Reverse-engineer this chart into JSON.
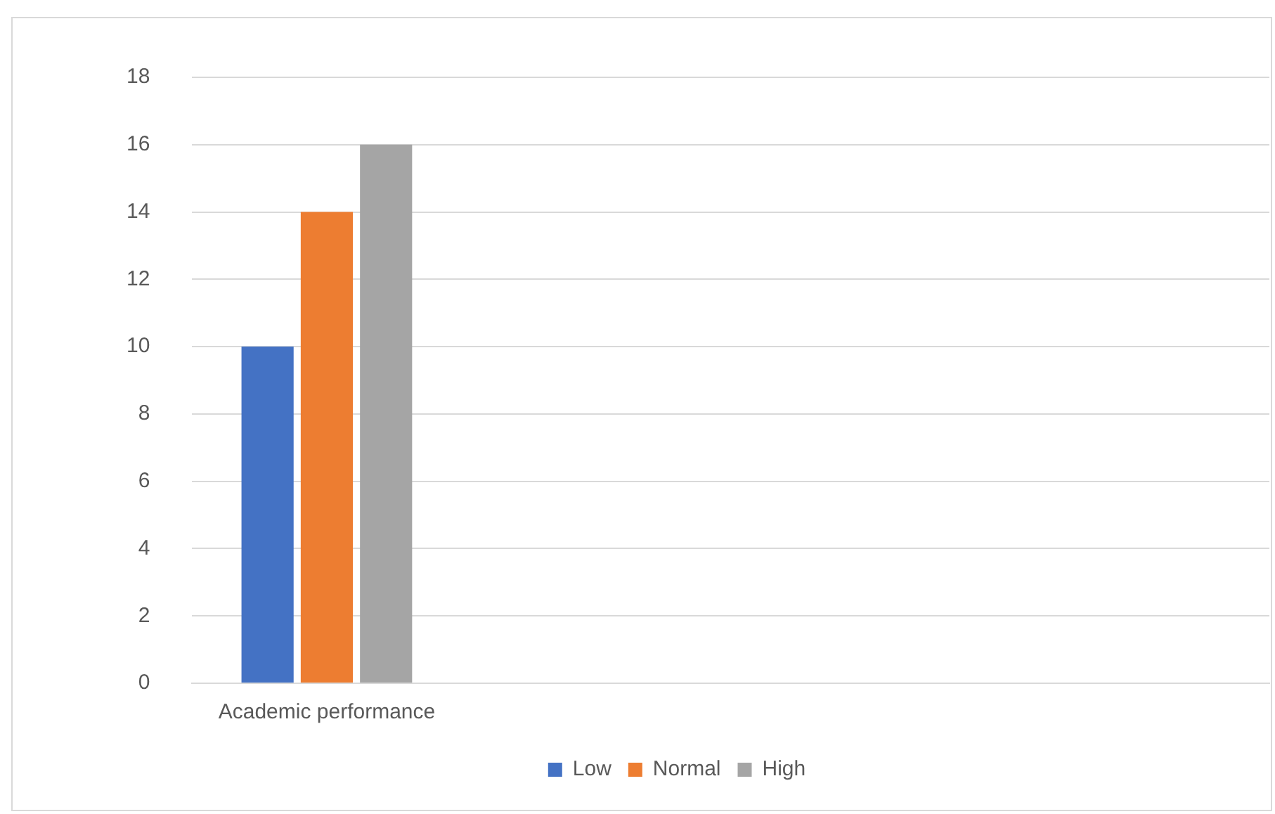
{
  "chart_data": {
    "type": "bar",
    "categories": [
      "Academic performance",
      null,
      null,
      null
    ],
    "series": [
      {
        "name": "Low",
        "color": "#4472c4",
        "values": [
          10,
          null,
          null,
          null
        ]
      },
      {
        "name": "Normal",
        "color": "#ed7d31",
        "values": [
          14,
          null,
          null,
          null
        ]
      },
      {
        "name": "High",
        "color": "#a5a5a5",
        "values": [
          16,
          null,
          null,
          null
        ]
      }
    ],
    "ylim": [
      0,
      18
    ],
    "yticks": [
      0,
      2,
      4,
      6,
      8,
      10,
      12,
      14,
      16,
      18
    ],
    "grid": "y",
    "legend": "bottom"
  }
}
